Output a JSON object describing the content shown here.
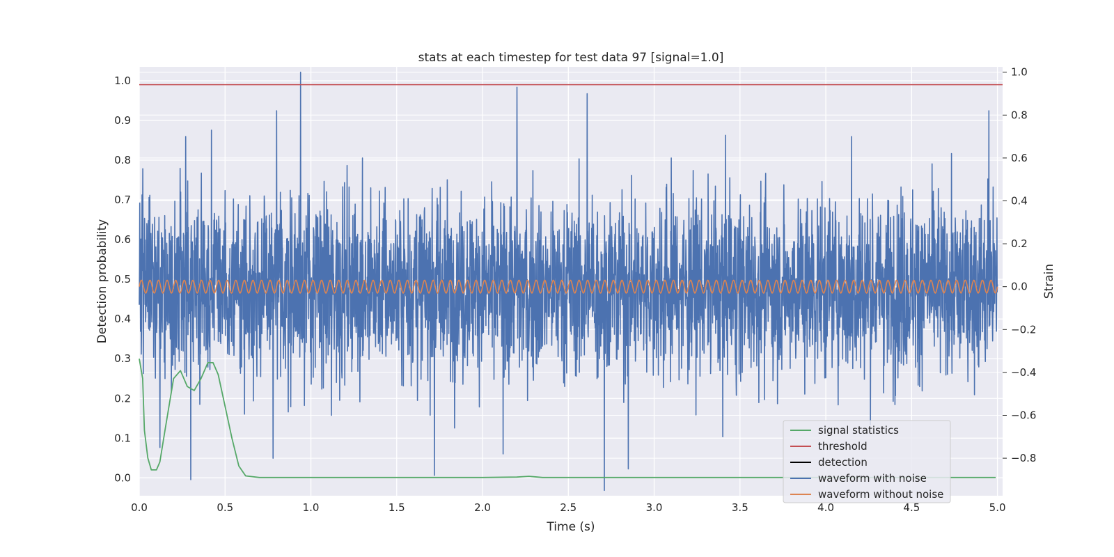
{
  "chart_data": {
    "type": "line",
    "title": "stats at each timestep for test data 97 [signal=1.0]",
    "xlabel": "Time (s)",
    "ylabel": "Detection probability",
    "ylabel_right": "Strain",
    "xlim": [
      0.0,
      5.03
    ],
    "ylim": [
      -0.045,
      1.035
    ],
    "ylim_right": [
      -0.975,
      1.025
    ],
    "x_ticks": [
      "0.0",
      "0.5",
      "1.0",
      "1.5",
      "2.0",
      "2.5",
      "3.0",
      "3.5",
      "4.0",
      "4.5",
      "5.0"
    ],
    "y_ticks": [
      "0.0",
      "0.1",
      "0.2",
      "0.3",
      "0.4",
      "0.5",
      "0.6",
      "0.7",
      "0.8",
      "0.9",
      "1.0"
    ],
    "y_right_ticks": [
      "−0.8",
      "−0.6",
      "−0.4",
      "−0.2",
      "0.0",
      "0.2",
      "0.4",
      "0.6",
      "0.8",
      "1.0"
    ],
    "grid": true,
    "legend_position": "lower-right",
    "background": "#EAEAF2",
    "series": [
      {
        "name": "signal statistics",
        "color": "#55A868",
        "axis": "left",
        "x": [
          0.0,
          0.02,
          0.03,
          0.05,
          0.07,
          0.1,
          0.12,
          0.15,
          0.2,
          0.24,
          0.28,
          0.32,
          0.36,
          0.4,
          0.43,
          0.46,
          0.5,
          0.54,
          0.58,
          0.62,
          0.7,
          1.0,
          2.0,
          2.2,
          2.27,
          2.35,
          2.5,
          3.0,
          4.0,
          4.99
        ],
        "values": [
          0.3,
          0.25,
          0.12,
          0.05,
          0.02,
          0.02,
          0.04,
          0.12,
          0.25,
          0.27,
          0.23,
          0.22,
          0.25,
          0.29,
          0.29,
          0.26,
          0.18,
          0.1,
          0.03,
          0.005,
          0.001,
          0.001,
          0.001,
          0.002,
          0.004,
          0.001,
          0.001,
          0.001,
          0.001,
          0.001
        ]
      },
      {
        "name": "threshold",
        "color": "#C44E52",
        "axis": "left",
        "x": [
          0.0,
          5.03
        ],
        "values": [
          0.99,
          0.99
        ]
      },
      {
        "name": "detection",
        "color": "#000000",
        "axis": "left",
        "x": [],
        "values": []
      },
      {
        "name": "waveform with noise",
        "color": "#4C72B0",
        "axis": "right",
        "x": [
          0.02,
          0.12,
          0.27,
          0.3,
          0.42,
          0.78,
          0.8,
          0.94,
          1.12,
          1.3,
          1.72,
          2.12,
          2.2,
          2.27,
          2.61,
          2.71,
          2.85,
          3.1,
          3.4,
          4.15,
          4.95
        ],
        "values": [
          0.55,
          -0.75,
          0.7,
          -0.9,
          0.73,
          -0.8,
          0.82,
          1.0,
          -0.6,
          0.6,
          -0.88,
          -0.78,
          0.93,
          -0.3,
          0.9,
          -0.95,
          -0.85,
          0.6,
          -0.7,
          0.7,
          0.82
        ],
        "noise_amplitude": 0.35,
        "description_samples": "dense noisy strain signal"
      },
      {
        "name": "waveform without noise",
        "color": "#DD8452",
        "axis": "right",
        "amplitude": 0.03,
        "cycles": 100,
        "x": [
          0.0,
          5.0
        ],
        "values": [
          0.0,
          0.0
        ]
      }
    ]
  }
}
